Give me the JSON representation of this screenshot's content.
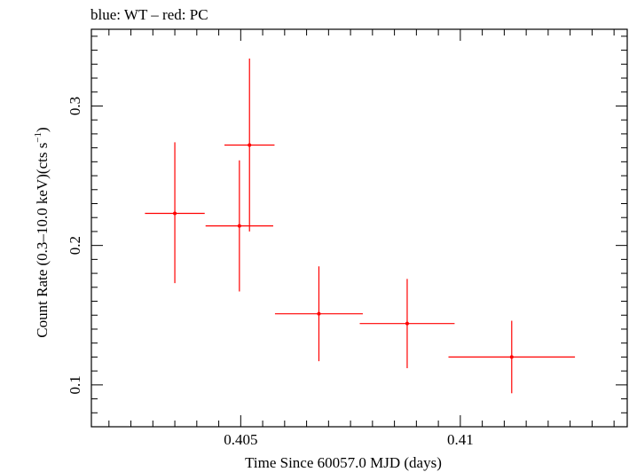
{
  "chart_data": {
    "type": "scatter",
    "title": "blue: WT – red: PC",
    "xlabel": "Time Since 60057.0 MJD (days)",
    "ylabel_parts": {
      "before": "Count Rate (0.3–10.0 keV)(cts s",
      "sup": "−1",
      "after": ")"
    },
    "xlim": [
      0.4016,
      0.4138
    ],
    "ylim": [
      0.07,
      0.355
    ],
    "x_ticks": [
      {
        "value": 0.405,
        "label": "0.405"
      },
      {
        "value": 0.41,
        "label": "0.41"
      }
    ],
    "x_minor_step": 0.0005,
    "y_ticks": [
      {
        "value": 0.1,
        "label": "0.1"
      },
      {
        "value": 0.2,
        "label": "0.2"
      },
      {
        "value": 0.3,
        "label": "0.3"
      }
    ],
    "y_minor_step": 0.01,
    "grid": false,
    "series": [
      {
        "name": "PC",
        "color": "#ff0000",
        "points": [
          {
            "x": 0.4035,
            "y": 0.223,
            "xerr_lo": 0.00068,
            "xerr_hi": 0.00068,
            "yerr_lo": 0.05,
            "yerr_hi": 0.051
          },
          {
            "x": 0.40497,
            "y": 0.214,
            "xerr_lo": 0.00077,
            "xerr_hi": 0.00077,
            "yerr_lo": 0.047,
            "yerr_hi": 0.047
          },
          {
            "x": 0.4052,
            "y": 0.272,
            "xerr_lo": 0.00057,
            "xerr_hi": 0.00057,
            "yerr_lo": 0.062,
            "yerr_hi": 0.062
          },
          {
            "x": 0.40678,
            "y": 0.151,
            "xerr_lo": 0.001,
            "xerr_hi": 0.001,
            "yerr_lo": 0.034,
            "yerr_hi": 0.034
          },
          {
            "x": 0.40879,
            "y": 0.144,
            "xerr_lo": 0.00108,
            "xerr_hi": 0.00108,
            "yerr_lo": 0.032,
            "yerr_hi": 0.032
          },
          {
            "x": 0.41117,
            "y": 0.12,
            "xerr_lo": 0.00144,
            "xerr_hi": 0.00144,
            "yerr_lo": 0.026,
            "yerr_hi": 0.026
          }
        ]
      }
    ]
  }
}
